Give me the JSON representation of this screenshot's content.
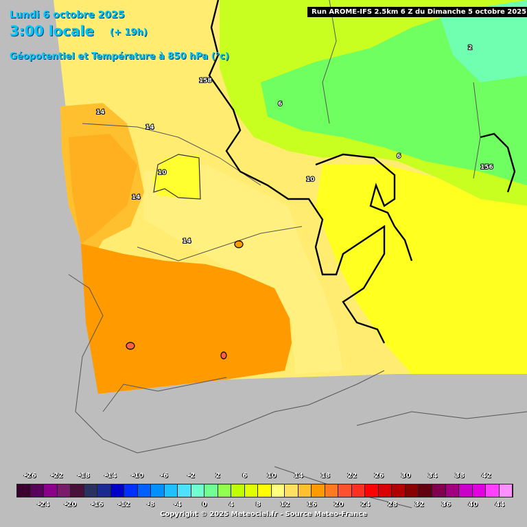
{
  "header": {
    "date": "Lundi 6 octobre 2025",
    "time": "3:00 locale",
    "offset": "(+ 19h)",
    "parameter": "Géopotentiel et Température à 850 hPa (°c)",
    "run": "Run AROME-IFS 2.5km 6 Z du Dimanche 5 octobre 2025"
  },
  "labels": {
    "geopotential": [
      "158",
      "156"
    ],
    "temperature": [
      "14",
      "14",
      "10",
      "14",
      "14",
      "10",
      "6",
      "6",
      "2"
    ]
  },
  "legend": {
    "top_values": [
      "-26",
      "-22",
      "-18",
      "-14",
      "-10",
      "-6",
      "-2",
      "2",
      "6",
      "10",
      "14",
      "18",
      "22",
      "26",
      "30",
      "34",
      "38",
      "42"
    ],
    "bottom_values": [
      "-24",
      "-20",
      "-16",
      "-12",
      "-8",
      "-4",
      "0",
      "4",
      "8",
      "12",
      "16",
      "20",
      "24",
      "28",
      "32",
      "36",
      "40",
      "44"
    ],
    "colors": [
      "#3a0030",
      "#5a005a",
      "#8a008a",
      "#7a1a6a",
      "#4a103a",
      "#2a3060",
      "#1a2a90",
      "#0000c8",
      "#0030ff",
      "#0060ff",
      "#0090ff",
      "#20c0ff",
      "#50e0ff",
      "#70ffd0",
      "#70ff90",
      "#90ff50",
      "#c0ff00",
      "#e0ff00",
      "#ffff00",
      "#ffff80",
      "#ffe060",
      "#ffc030",
      "#ff9a00",
      "#ff7a20",
      "#ff5030",
      "#ff3020",
      "#ff0000",
      "#d80000",
      "#b00000",
      "#880000",
      "#600010",
      "#800050",
      "#a00080",
      "#c800c8",
      "#e000e0",
      "#ff40ff",
      "#ff90ff"
    ]
  },
  "copyright": "Copyright © 2025 Meteociel.fr - Source Meteo-France"
}
